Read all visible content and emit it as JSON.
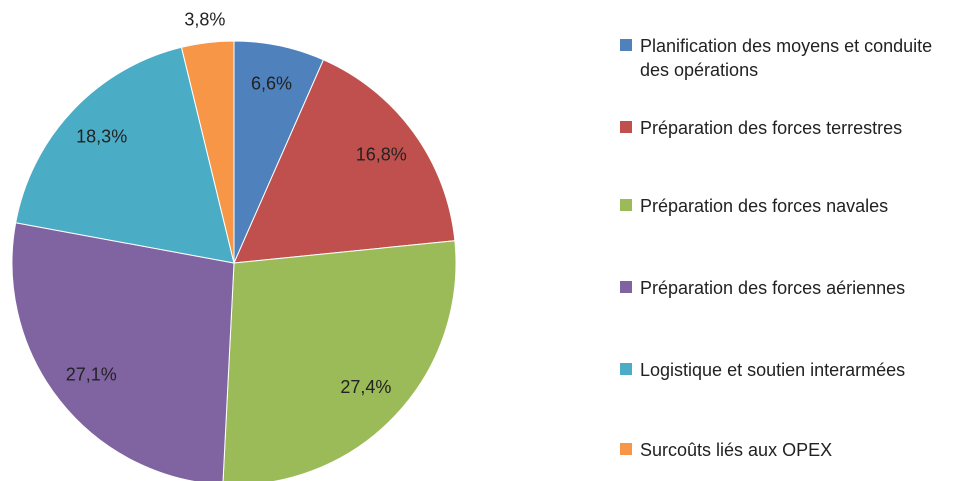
{
  "chart_data": {
    "type": "pie",
    "categories": [
      "Planification des moyens et conduite des opérations",
      "Préparation des forces terrestres",
      "Préparation des forces navales",
      "Préparation des forces aériennes",
      "Logistique et soutien interarmées",
      "Surcoûts liés aux OPEX"
    ],
    "values": [
      6.6,
      16.8,
      27.4,
      27.1,
      18.3,
      3.8
    ],
    "value_labels": [
      "6,6%",
      "16,8%",
      "27,4%",
      "27,1%",
      "18,3%",
      "3,8%"
    ],
    "colors": [
      "#4f81bd",
      "#c0504d",
      "#9bbb59",
      "#8064a2",
      "#4bacc6",
      "#f79646"
    ],
    "legend": "right"
  }
}
